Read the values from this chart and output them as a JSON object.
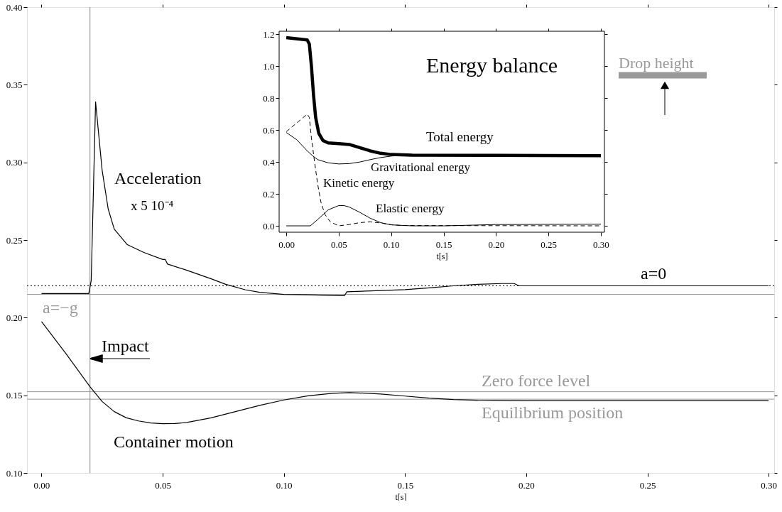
{
  "chart_data": [
    {
      "type": "line",
      "xlabel": "t[s]",
      "xlim": [
        -0.006,
        0.3023
      ],
      "ylim": [
        0.1,
        0.4
      ],
      "xticks": [
        {
          "value": 0,
          "label": "0.00"
        },
        0.05,
        {
          "value": 0.1,
          "label": "0.10"
        },
        0.15,
        {
          "value": 0.2,
          "label": "0.20"
        },
        0.25,
        {
          "value": 0.3,
          "label": "0.30"
        }
      ],
      "yticks": [
        {
          "value": 0.1,
          "label": "0.10"
        },
        0.15,
        {
          "value": 0.2,
          "label": "0.20"
        },
        0.25,
        {
          "value": 0.3,
          "label": "0.30"
        },
        0.35,
        {
          "value": 0.4,
          "label": "0.40"
        }
      ],
      "line_style": "solid",
      "series": [
        {
          "name": "Acceleration",
          "color": "#000000",
          "x": [
            0,
            0.0195,
            0.0205,
            0.0223,
            0.025,
            0.0275,
            0.03,
            0.0354,
            0.0422,
            0.05,
            0.051,
            0.052,
            0.06,
            0.07,
            0.076,
            0.084,
            0.09,
            0.1,
            0.11,
            0.124,
            0.125,
            0.126,
            0.14,
            0.15,
            0.16,
            0.17,
            0.18,
            0.19,
            0.195,
            0.197,
            0.3
          ],
          "values": [
            0.2155,
            0.2155,
            0.224,
            0.339,
            0.295,
            0.27,
            0.257,
            0.247,
            0.242,
            0.2375,
            0.2375,
            0.2345,
            0.2305,
            0.225,
            0.2215,
            0.218,
            0.2163,
            0.215,
            0.2147,
            0.2142,
            0.2142,
            0.2167,
            0.2175,
            0.218,
            0.2192,
            0.2205,
            0.2215,
            0.222,
            0.222,
            0.2205,
            0.2205
          ]
        },
        {
          "name": "Container motion",
          "color": "#000000",
          "x": [
            0,
            0.01,
            0.02,
            0.025,
            0.03,
            0.035,
            0.04,
            0.045,
            0.05,
            0.055,
            0.06,
            0.07,
            0.08,
            0.09,
            0.1,
            0.11,
            0.12,
            0.127,
            0.135,
            0.14,
            0.15,
            0.16,
            0.17,
            0.18,
            0.2,
            0.25,
            0.3
          ],
          "values": [
            0.1975,
            0.177,
            0.1555,
            0.146,
            0.1395,
            0.1355,
            0.1335,
            0.1322,
            0.1317,
            0.1318,
            0.1325,
            0.1355,
            0.1395,
            0.1435,
            0.147,
            0.1497,
            0.1513,
            0.1517,
            0.1513,
            0.1508,
            0.1495,
            0.1482,
            0.1473,
            0.1468,
            0.1465,
            0.1465,
            0.1465
          ]
        }
      ],
      "ref_lines": [
        {
          "axis": "y",
          "value": 0.2205,
          "label": "a=0",
          "color": "#000000",
          "line_style": "dotted"
        },
        {
          "axis": "y",
          "value": 0.215,
          "label": "a=−g",
          "color": "#999999",
          "line_style": "solid"
        },
        {
          "axis": "y",
          "value": 0.1523,
          "label": "Zero force level",
          "color": "#999999",
          "line_style": "solid"
        },
        {
          "axis": "y",
          "value": 0.1475,
          "label": "Equilibrium position",
          "color": "#999999",
          "line_style": "solid"
        },
        {
          "axis": "x",
          "value": 0.02,
          "label": "Impact",
          "color": "#888888",
          "line_style": "solid"
        }
      ],
      "annotations": [
        "x 5 10⁻⁴",
        "Drop height"
      ]
    },
    {
      "type": "line",
      "title": "Energy balance",
      "xlabel": "t[s]",
      "xlim": [
        -0.0068,
        0.3034
      ],
      "ylim": [
        -0.04,
        1.22
      ],
      "xticks": [
        {
          "value": 0,
          "label": "0.00"
        },
        0.05,
        {
          "value": 0.1,
          "label": "0.10"
        },
        0.15,
        {
          "value": 0.2,
          "label": "0.20"
        },
        0.25,
        {
          "value": 0.3,
          "label": "0.30"
        }
      ],
      "yticks": [
        {
          "value": 0,
          "label": "0.0"
        },
        0.2,
        0.4,
        0.6,
        0.8,
        {
          "value": 1,
          "label": "1.0"
        },
        1.2
      ],
      "series": [
        {
          "name": "Total energy",
          "color": "#000000",
          "line_style": "solid",
          "x": [
            0,
            0.02,
            0.022,
            0.024,
            0.026,
            0.028,
            0.031,
            0.035,
            0.04,
            0.05,
            0.06,
            0.07,
            0.08,
            0.09,
            0.1,
            0.12,
            0.2,
            0.3
          ],
          "values": [
            1.18,
            1.165,
            1.14,
            1.0,
            0.82,
            0.68,
            0.58,
            0.535,
            0.52,
            0.515,
            0.51,
            0.49,
            0.47,
            0.455,
            0.447,
            0.443,
            0.442,
            0.44
          ]
        },
        {
          "name": "Gravitational energy",
          "color": "#000000",
          "line_style": "solid",
          "x": [
            0,
            0.01,
            0.02,
            0.025,
            0.03,
            0.04,
            0.05,
            0.06,
            0.07,
            0.08,
            0.09,
            0.1,
            0.11,
            0.3
          ],
          "values": [
            0.585,
            0.54,
            0.47,
            0.44,
            0.415,
            0.395,
            0.388,
            0.39,
            0.4,
            0.415,
            0.428,
            0.437,
            0.443,
            0.44
          ]
        },
        {
          "name": "Kinetic energy",
          "color": "#000000",
          "line_style": "dashed",
          "x": [
            0,
            0.02,
            0.022,
            0.024,
            0.027,
            0.03,
            0.033,
            0.037,
            0.042,
            0.05,
            0.06,
            0.07,
            0.08,
            0.09,
            0.1,
            0.11,
            0.3
          ],
          "values": [
            0.59,
            0.7,
            0.68,
            0.55,
            0.4,
            0.26,
            0.15,
            0.07,
            0.025,
            0.0,
            0.008,
            0.02,
            0.025,
            0.018,
            0.007,
            0.002,
            0.0
          ]
        },
        {
          "name": "Elastic energy",
          "color": "#000000",
          "line_style": "solid",
          "x": [
            0,
            0.023,
            0.03,
            0.04,
            0.05,
            0.055,
            0.06,
            0.07,
            0.08,
            0.09,
            0.1,
            0.12,
            0.15,
            0.2,
            0.3
          ],
          "values": [
            0,
            0,
            0.04,
            0.1,
            0.127,
            0.127,
            0.118,
            0.085,
            0.048,
            0.02,
            0.006,
            0.0,
            0.0,
            0.008,
            0.01
          ]
        }
      ]
    }
  ]
}
